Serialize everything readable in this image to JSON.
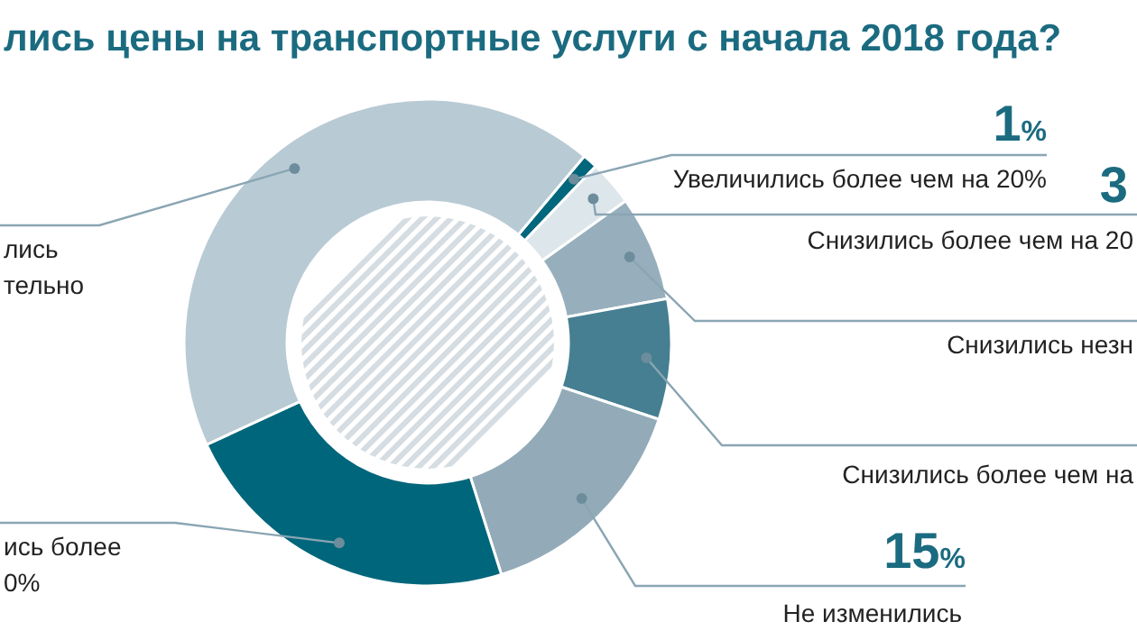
{
  "chart_data": {
    "type": "donut",
    "title": "лись цены на транспортные услуги с начала 2018 года?",
    "categories": [
      "Увеличились более чем на 20%",
      "Снизились более чем на 20",
      "Снизились незн",
      "Снизились более чем на",
      "Не изменились",
      "ись более\n0%",
      "лись\nтельно"
    ],
    "values": [
      1,
      3,
      7,
      8,
      15,
      23,
      43
    ],
    "colors": [
      "#00677c",
      "#dde6eb",
      "#97afbc",
      "#457f91",
      "#93abb8",
      "#00667b",
      "#b8cad4"
    ],
    "value_labels": [
      "1%",
      "3",
      null,
      null,
      "15%",
      null,
      null
    ]
  }
}
